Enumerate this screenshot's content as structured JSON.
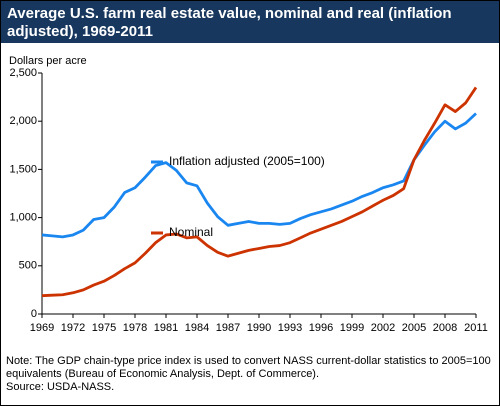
{
  "chart_data": {
    "type": "line",
    "title": "Average U.S. farm real estate value, nominal and real (inflation adjusted), 1969-2011",
    "y_label": "Dollars per acre",
    "x": [
      1969,
      1970,
      1971,
      1972,
      1973,
      1974,
      1975,
      1976,
      1977,
      1978,
      1979,
      1980,
      1981,
      1982,
      1983,
      1984,
      1985,
      1986,
      1987,
      1988,
      1989,
      1990,
      1991,
      1992,
      1993,
      1994,
      1995,
      1996,
      1997,
      1998,
      1999,
      2000,
      2001,
      2002,
      2003,
      2004,
      2005,
      2006,
      2007,
      2008,
      2009,
      2010,
      2011
    ],
    "series": [
      {
        "name": "Inflation adjusted (2005=100)",
        "color": "#1a86f0",
        "values": [
          820,
          810,
          800,
          820,
          870,
          980,
          1000,
          1110,
          1260,
          1310,
          1420,
          1540,
          1570,
          1490,
          1360,
          1330,
          1150,
          1010,
          920,
          940,
          960,
          940,
          940,
          930,
          940,
          990,
          1030,
          1060,
          1090,
          1130,
          1170,
          1220,
          1260,
          1310,
          1340,
          1380,
          1600,
          1750,
          1890,
          2000,
          1920,
          1980,
          2080
        ]
      },
      {
        "name": "Nominal",
        "color": "#cc3300",
        "values": [
          190,
          195,
          200,
          220,
          250,
          300,
          340,
          400,
          470,
          530,
          630,
          740,
          820,
          830,
          790,
          800,
          710,
          640,
          600,
          630,
          660,
          680,
          700,
          710,
          740,
          790,
          840,
          880,
          920,
          960,
          1010,
          1060,
          1120,
          1180,
          1230,
          1300,
          1600,
          1800,
          1980,
          2170,
          2100,
          2190,
          2350
        ]
      }
    ],
    "xlim": [
      1969,
      2011
    ],
    "xticks": [
      1969,
      1972,
      1975,
      1978,
      1981,
      1984,
      1987,
      1990,
      1993,
      1996,
      1999,
      2002,
      2005,
      2008,
      2011
    ],
    "ylim": [
      0,
      2500
    ],
    "yticks": [
      0,
      500,
      {
        "value": 1000,
        "label": "1,000"
      },
      {
        "value": 1500,
        "label": "1,500"
      },
      {
        "value": 2000,
        "label": "2,000"
      },
      {
        "value": 2500,
        "label": "2,500"
      }
    ],
    "note": "Note: The GDP chain-type price index is used to convert NASS current-dollar statistics to 2005=100 equivalents (Bureau of Economic Analysis, Dept. of Commerce).",
    "source": "Source: USDA-NASS."
  }
}
